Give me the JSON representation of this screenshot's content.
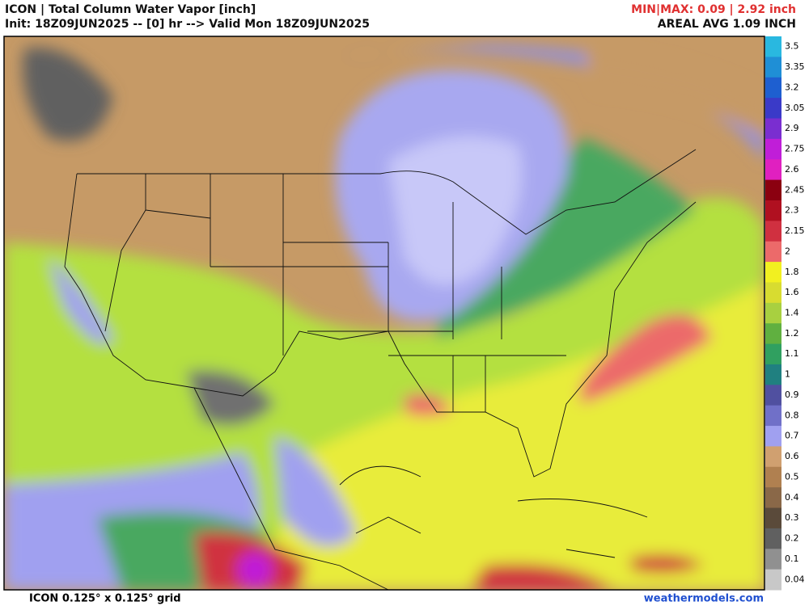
{
  "header": {
    "title": "ICON | Total Column Water Vapor [inch]",
    "init": "Init: 18Z09JUN2025 -- [0] hr --> Valid Mon 18Z09JUN2025",
    "minmax": "MIN|MAX: 0.09 | 2.92 inch",
    "areal": "AREAL AVG 1.09 INCH"
  },
  "footer": {
    "grid": "ICON 0.125° x 0.125° grid",
    "site": "weathermodels.com"
  },
  "colorbar": {
    "labels": [
      "3.5",
      "3.35",
      "3.2",
      "3.05",
      "2.9",
      "2.75",
      "2.6",
      "2.45",
      "2.3",
      "2.15",
      "2",
      "1.8",
      "1.6",
      "1.4",
      "1.2",
      "1.1",
      "1",
      "0.9",
      "0.8",
      "0.7",
      "0.6",
      "0.5",
      "0.4",
      "0.3",
      "0.2",
      "0.1",
      "0.04"
    ],
    "colors": [
      "#29b8e0",
      "#1f8fd6",
      "#1e5fd0",
      "#3a3ac8",
      "#7a2ed0",
      "#c01ed8",
      "#e020c0",
      "#8b0010",
      "#b01020",
      "#d03040",
      "#ec6a6a",
      "#f2f020",
      "#d8dc30",
      "#a8d040",
      "#60b040",
      "#30a060",
      "#208080",
      "#5050a0",
      "#7070c8",
      "#a0a0f0",
      "#d0a070",
      "#b08050",
      "#8a6848",
      "#5a4a3a",
      "#606060",
      "#909090",
      "#c8c8c8"
    ]
  }
}
